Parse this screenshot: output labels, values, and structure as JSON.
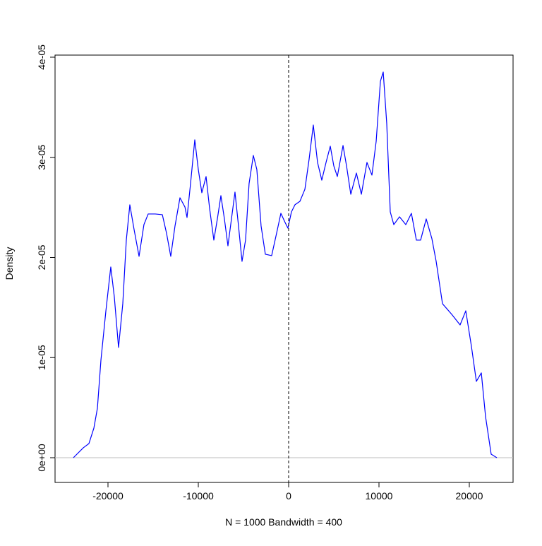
{
  "chart_data": {
    "type": "line",
    "xlabel": "N = 1000   Bandwidth = 400",
    "ylabel": "Density",
    "x": [
      -23830,
      -22730,
      -22110,
      -21560,
      -21170,
      -20780,
      -20230,
      -19690,
      -19300,
      -18830,
      -18360,
      -17970,
      -17580,
      -17110,
      -16560,
      -16020,
      -15550,
      -14770,
      -13980,
      -13520,
      -13050,
      -12580,
      -12030,
      -11480,
      -11250,
      -10860,
      -10390,
      -10000,
      -9610,
      -9140,
      -8750,
      -8280,
      -7890,
      -7500,
      -7110,
      -6720,
      -6330,
      -5940,
      -5550,
      -5160,
      -4770,
      -4380,
      -3910,
      -3520,
      -3050,
      -2580,
      -1880,
      -1330,
      -860,
      -390,
      -80,
      310,
      700,
      1250,
      1800,
      2270,
      2730,
      3200,
      3670,
      4140,
      4610,
      5000,
      5390,
      6020,
      6410,
      6880,
      7500,
      8050,
      8670,
      9220,
      9690,
      10160,
      10470,
      10860,
      11250,
      11640,
      12270,
      12970,
      13590,
      14140,
      14610,
      15230,
      15860,
      16330,
      17030,
      18050,
      18980,
      19610,
      20230,
      20780,
      21330,
      21800,
      22420,
      23050
    ],
    "values": [
      0,
      9.9e-07,
      1.41e-06,
      2.96e-06,
      4.94e-06,
      9.74e-06,
      1.467e-05,
      1.905e-05,
      1.608e-05,
      1.101e-05,
      1.538e-05,
      2.173e-05,
      2.526e-05,
      2.279e-05,
      2.011e-05,
      2.328e-05,
      2.434e-05,
      2.434e-05,
      2.427e-05,
      2.243e-05,
      2.011e-05,
      2.314e-05,
      2.596e-05,
      2.504e-05,
      2.399e-05,
      2.737e-05,
      3.175e-05,
      2.878e-05,
      2.646e-05,
      2.808e-05,
      2.49e-05,
      2.173e-05,
      2.385e-05,
      2.617e-05,
      2.385e-05,
      2.116e-05,
      2.385e-05,
      2.653e-05,
      2.314e-05,
      1.961e-05,
      2.173e-05,
      2.737e-05,
      3.019e-05,
      2.878e-05,
      2.314e-05,
      2.032e-05,
      2.018e-05,
      2.243e-05,
      2.441e-05,
      2.349e-05,
      2.293e-05,
      2.455e-05,
      2.526e-05,
      2.561e-05,
      2.681e-05,
      2.984e-05,
      3.323e-05,
      2.949e-05,
      2.772e-05,
      2.949e-05,
      3.111e-05,
      2.914e-05,
      2.808e-05,
      3.118e-05,
      2.914e-05,
      2.631e-05,
      2.843e-05,
      2.631e-05,
      2.949e-05,
      2.822e-05,
      3.16e-05,
      3.76e-05,
      3.852e-05,
      3.337e-05,
      2.455e-05,
      2.328e-05,
      2.406e-05,
      2.328e-05,
      2.441e-05,
      2.173e-05,
      2.173e-05,
      2.385e-05,
      2.187e-05,
      1.961e-05,
      1.538e-05,
      1.432e-05,
      1.326e-05,
      1.467e-05,
      1.115e-05,
      7.62e-06,
      8.47e-06,
      4.09e-06,
      3.5e-07,
      0
    ],
    "color": "#0000ff",
    "xlim": [
      -25859,
      24844
    ],
    "xticks": [
      -20000,
      -10000,
      0,
      10000,
      20000
    ],
    "ylim": [
      -2.47e-06,
      4.021e-05
    ],
    "yticks": [
      {
        "value": 0,
        "label": "0e+00"
      },
      {
        "value": 1e-05,
        "label": "1e-05"
      },
      {
        "value": 2e-05,
        "label": "2e-05"
      },
      {
        "value": 3e-05,
        "label": "3e-05"
      },
      {
        "value": 4e-05,
        "label": "4e-05"
      }
    ],
    "hline": 0,
    "vline": 0
  }
}
